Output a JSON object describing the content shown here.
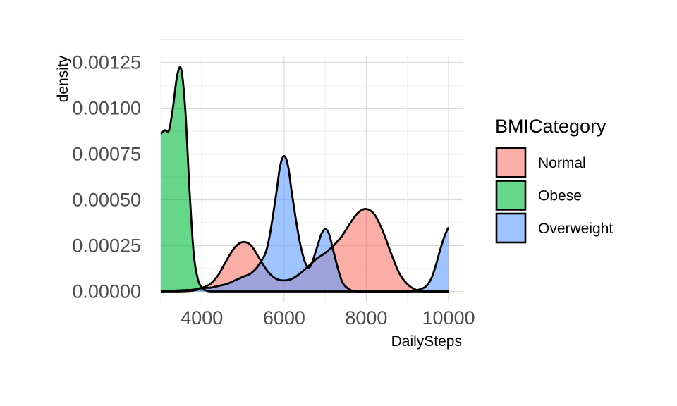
{
  "chart_data": {
    "type": "area",
    "subtype": "density",
    "xlabel": "DailySteps",
    "ylabel": "density",
    "xlim": [
      3000,
      10000
    ],
    "ylim": [
      0,
      0.00125
    ],
    "x_ticks": [
      4000,
      6000,
      8000,
      10000
    ],
    "x_tick_labels": [
      "4000",
      "6000",
      "8000",
      "10000"
    ],
    "y_ticks": [
      0,
      0.00025,
      0.0005,
      0.00075,
      0.001,
      0.00125
    ],
    "y_tick_labels": [
      "0.00000",
      "0.00025",
      "0.00050",
      "0.00075",
      "0.00100",
      "0.00125"
    ],
    "grid": true,
    "legend": {
      "title": "BMICategory",
      "position": "right"
    },
    "series": [
      {
        "name": "Normal",
        "color": "#F8766D",
        "x": [
          3000,
          3400,
          3800,
          4000,
          4200,
          4400,
          4600,
          4800,
          5000,
          5200,
          5400,
          5600,
          5800,
          6000,
          6200,
          6400,
          6600,
          6800,
          7000,
          7200,
          7400,
          7600,
          7800,
          8000,
          8200,
          8400,
          8600,
          8800,
          9000,
          9200,
          9400,
          9600,
          9800,
          10000
        ],
        "values": [
          0,
          0,
          5e-06,
          2e-05,
          4e-05,
          9e-05,
          0.00017,
          0.00024,
          0.00027,
          0.00025,
          0.00018,
          0.00011,
          7e-05,
          6e-05,
          7e-05,
          0.0001,
          0.00014,
          0.00018,
          0.00021,
          0.00025,
          0.0003,
          0.00037,
          0.00043,
          0.00045,
          0.00042,
          0.00033,
          0.00021,
          0.0001,
          4e-05,
          1e-05,
          0,
          0,
          0,
          0
        ]
      },
      {
        "name": "Obese",
        "color": "#00BA38",
        "x": [
          3000,
          3100,
          3200,
          3300,
          3400,
          3500,
          3600,
          3700,
          3800,
          3900,
          4000,
          4100,
          4200,
          4400,
          4600,
          5000,
          6000,
          7000,
          8000,
          9000,
          10000
        ],
        "values": [
          0.00086,
          0.00088,
          0.00088,
          0.00101,
          0.00118,
          0.00121,
          0.00098,
          0.00055,
          0.00021,
          7e-05,
          2e-05,
          5e-06,
          0,
          0,
          0,
          0,
          0,
          0,
          0,
          0,
          0
        ]
      },
      {
        "name": "Overweight",
        "color": "#619CFF",
        "x": [
          3000,
          3400,
          3800,
          4000,
          4200,
          4400,
          4600,
          4800,
          5000,
          5200,
          5400,
          5600,
          5800,
          5900,
          6000,
          6100,
          6200,
          6400,
          6600,
          6800,
          6900,
          7000,
          7100,
          7200,
          7400,
          7600,
          7800,
          8000,
          8400,
          8800,
          9000,
          9200,
          9400,
          9500,
          9600,
          9700,
          9800,
          9900,
          10000
        ],
        "values": [
          0,
          5e-06,
          1e-05,
          2e-05,
          2e-05,
          3e-05,
          4e-05,
          6e-05,
          8e-05,
          0.0001,
          0.00015,
          0.00025,
          0.00052,
          0.00068,
          0.00074,
          0.00068,
          0.00052,
          0.00025,
          0.00013,
          0.00024,
          0.00031,
          0.00034,
          0.00031,
          0.00022,
          6e-05,
          1e-05,
          0,
          0,
          0,
          0,
          0,
          5e-06,
          2e-05,
          4e-05,
          8e-05,
          0.00015,
          0.00023,
          0.0003,
          0.00035
        ]
      }
    ]
  }
}
